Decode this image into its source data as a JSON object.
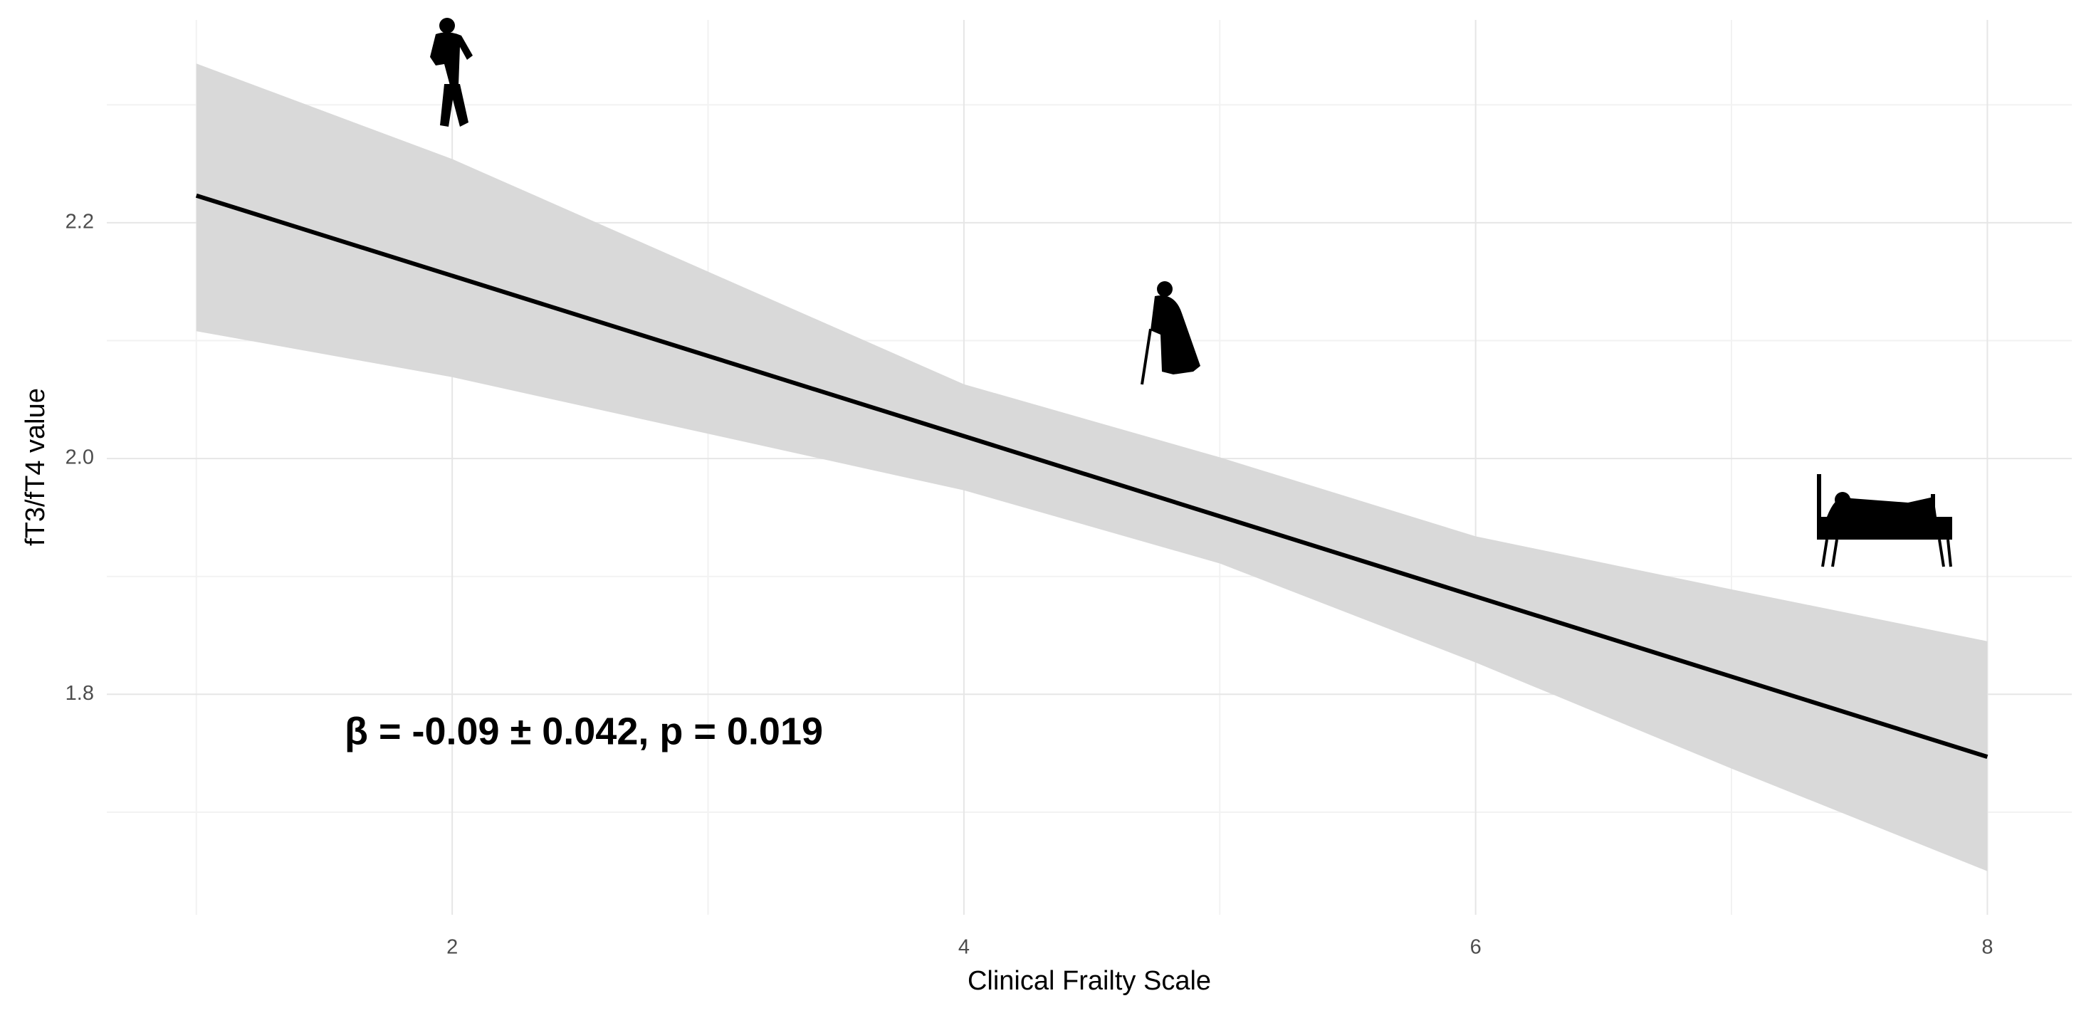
{
  "chart_data": {
    "type": "line",
    "x_label": "Clinical Frailty Scale",
    "y_label": "fT3/fT4 value",
    "annotation": "β = -0.09 ± 0.042, p = 0.019",
    "series": [
      {
        "color": "#000000",
        "x": [
          1,
          8
        ],
        "values": [
          2.223,
          1.747
        ]
      }
    ],
    "band": {
      "color": "#d9d9d9",
      "x": [
        1,
        2,
        4,
        5,
        6,
        7,
        8
      ],
      "upper": [
        2.335,
        2.254,
        2.063,
        2.001,
        1.934,
        1.889,
        1.845
      ],
      "lower": [
        2.108,
        2.069,
        1.973,
        1.911,
        1.827,
        1.737,
        1.65
      ]
    },
    "xlim": [
      0.65,
      8.33
    ],
    "ylim": [
      1.613,
      2.372
    ],
    "xticks": [
      2,
      4,
      6,
      8
    ],
    "yticks": [
      1.8,
      {
        "value": 2,
        "label": "2.0"
      },
      2.2
    ],
    "x_minor": [
      1,
      3,
      5,
      7
    ],
    "y_minor": [
      1.7,
      1.9,
      2.1,
      2.3
    ],
    "grid": true
  }
}
